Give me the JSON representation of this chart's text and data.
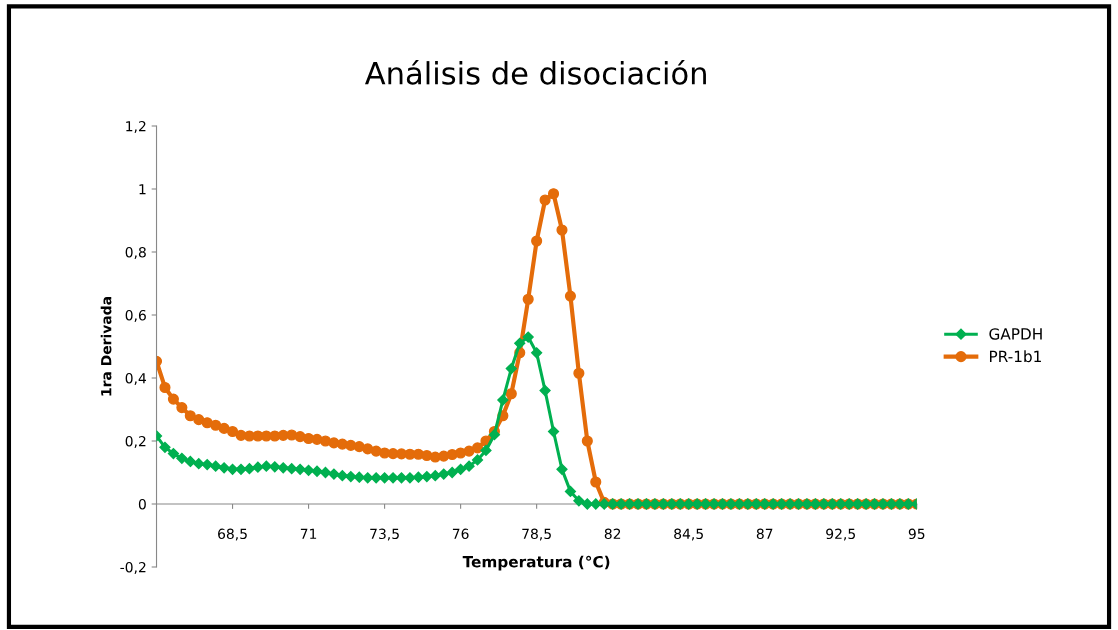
{
  "chart_data": {
    "type": "line",
    "title": "Análisis de disociación",
    "xlabel": "Temperatura (°C)",
    "ylabel": "1ra Derivada",
    "categories": [
      null,
      null,
      null,
      null,
      null,
      null,
      null,
      null,
      null,
      "68,5",
      null,
      null,
      null,
      null,
      null,
      null,
      null,
      null,
      "71",
      null,
      null,
      null,
      null,
      null,
      null,
      null,
      null,
      "73,5",
      null,
      null,
      null,
      null,
      null,
      null,
      null,
      null,
      "76",
      null,
      null,
      null,
      null,
      null,
      null,
      null,
      null,
      "78,5",
      null,
      null,
      null,
      null,
      null,
      null,
      null,
      null,
      "82",
      null,
      null,
      null,
      null,
      null,
      null,
      null,
      null,
      "84,5",
      null,
      null,
      null,
      null,
      null,
      null,
      null,
      null,
      "87",
      null,
      null,
      null,
      null,
      null,
      null,
      null,
      null,
      "92,5",
      null,
      null,
      null,
      null,
      null,
      null,
      null,
      null,
      "95"
    ],
    "series": [
      {
        "name": "GAPDH",
        "color": "#00b050",
        "marker": "diamond",
        "values": [
          0.216,
          0.18,
          0.16,
          0.145,
          0.135,
          0.128,
          0.125,
          0.12,
          0.115,
          0.11,
          0.11,
          0.112,
          0.117,
          0.12,
          0.118,
          0.115,
          0.112,
          0.11,
          0.107,
          0.104,
          0.1,
          0.095,
          0.09,
          0.087,
          0.085,
          0.083,
          0.083,
          0.083,
          0.083,
          0.083,
          0.083,
          0.085,
          0.087,
          0.09,
          0.095,
          0.1,
          0.11,
          0.12,
          0.14,
          0.17,
          0.22,
          0.33,
          0.43,
          0.51,
          0.53,
          0.48,
          0.36,
          0.23,
          0.11,
          0.04,
          0.01,
          0,
          0,
          0,
          0,
          0,
          0,
          0,
          0,
          0,
          0,
          0,
          0,
          0,
          0,
          0,
          0,
          0,
          0,
          0,
          0,
          0,
          0,
          0,
          0,
          0,
          0,
          0,
          0,
          0,
          0,
          0,
          0,
          0,
          0,
          0,
          0,
          0,
          0,
          0,
          0
        ]
      },
      {
        "name": "PR-1b1",
        "color": "#e46c0a",
        "marker": "circle",
        "values": [
          0.453,
          0.37,
          0.333,
          0.306,
          0.28,
          0.268,
          0.258,
          0.25,
          0.24,
          0.23,
          0.218,
          0.216,
          0.216,
          0.216,
          0.216,
          0.218,
          0.219,
          0.214,
          0.208,
          0.205,
          0.2,
          0.194,
          0.19,
          0.186,
          0.182,
          0.175,
          0.168,
          0.162,
          0.16,
          0.159,
          0.158,
          0.158,
          0.154,
          0.149,
          0.152,
          0.157,
          0.162,
          0.168,
          0.178,
          0.2,
          0.23,
          0.28,
          0.35,
          0.48,
          0.65,
          0.835,
          0.965,
          0.985,
          0.87,
          0.66,
          0.415,
          0.2,
          0.07,
          0.005,
          0,
          0,
          0,
          0,
          0,
          0,
          0,
          0,
          0,
          0,
          0,
          0,
          0,
          0,
          0,
          0,
          0,
          0,
          0,
          0,
          0,
          0,
          0,
          0,
          0,
          0,
          0,
          0,
          0,
          0,
          0,
          0,
          0,
          0,
          0,
          0,
          0
        ]
      }
    ],
    "ylim": [
      -0.2,
      1.2
    ],
    "yticks": [
      {
        "value": -0.2,
        "label": "-0,2"
      },
      {
        "value": 0,
        "label": "0"
      },
      {
        "value": 0.2,
        "label": "0,2"
      },
      {
        "value": 0.4,
        "label": "0,4"
      },
      {
        "value": 0.6,
        "label": "0,6"
      },
      {
        "value": 0.8,
        "label": "0,8"
      },
      {
        "value": 1,
        "label": "1"
      },
      {
        "value": 1.2,
        "label": "1,2"
      }
    ],
    "grid": false,
    "legend": "right"
  }
}
